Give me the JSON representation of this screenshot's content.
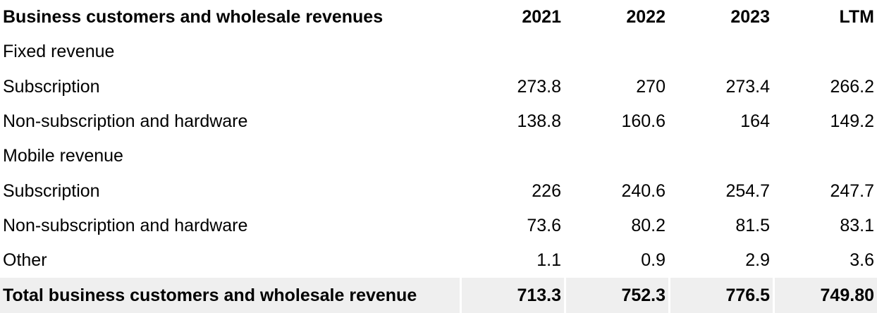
{
  "table": {
    "header": {
      "label": "Business customers and wholesale revenues",
      "columns": [
        "2021",
        "2022",
        "2023",
        "LTM"
      ]
    },
    "rows": [
      {
        "label": "Fixed revenue",
        "values": [
          "",
          "",
          "",
          ""
        ]
      },
      {
        "label": "Subscription",
        "values": [
          "273.8",
          "270",
          "273.4",
          "266.2"
        ]
      },
      {
        "label": "Non-subscription and hardware",
        "values": [
          "138.8",
          "160.6",
          "164",
          "149.2"
        ]
      },
      {
        "label": "Mobile revenue",
        "values": [
          "",
          "",
          "",
          ""
        ]
      },
      {
        "label": "Subscription",
        "values": [
          "226",
          "240.6",
          "254.7",
          "247.7"
        ]
      },
      {
        "label": "Non-subscription and hardware",
        "values": [
          "73.6",
          "80.2",
          "81.5",
          "83.1"
        ]
      },
      {
        "label": "Other",
        "values": [
          "1.1",
          "0.9",
          "2.9",
          "3.6"
        ]
      }
    ],
    "total": {
      "label": "Total business customers and wholesale revenue",
      "values": [
        "713.3",
        "752.3",
        "776.5",
        "749.80"
      ]
    }
  }
}
